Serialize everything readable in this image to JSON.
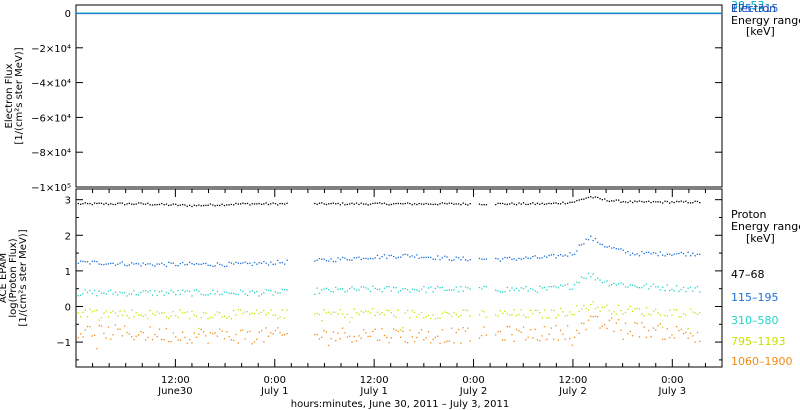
{
  "chart_data": [
    {
      "type": "line",
      "panel": "top",
      "ylabel_lines": [
        "Electron Flux",
        "[1/(cm²s ster MeV)]"
      ],
      "ytick_labels": [
        "0",
        "−2×10⁴",
        "−4×10⁴",
        "−6×10⁴",
        "−8×10⁴",
        "−1×10⁵"
      ],
      "yticks": [
        0,
        -20000,
        -40000,
        -60000,
        -80000,
        -100000
      ],
      "ylim": [
        -100000,
        0
      ],
      "grid": false,
      "legend": {
        "title_lines": [
          "Electron",
          "Energy range",
          "[keV]"
        ],
        "entries": [
          "38–53",
          "175–315"
        ]
      },
      "series": [
        {
          "name": "38–53",
          "color": "#00b4c8",
          "values": [
            0,
            0
          ]
        },
        {
          "name": "175–315",
          "color": "#1f77c8",
          "values": [
            0,
            0
          ]
        }
      ]
    },
    {
      "type": "scatter",
      "panel": "bottom",
      "ylabel_lines": [
        "ACE EPAM",
        "log(Proton Flux)",
        "[1/(cm²s ster MeV)]"
      ],
      "ytick_labels": [
        "3",
        "2",
        "1",
        "0",
        "−1"
      ],
      "yticks": [
        3,
        2,
        1,
        0,
        -1
      ],
      "ylim": [
        -1.7,
        3.3
      ],
      "xlim": [
        0,
        78
      ],
      "xlabel": "hours:minutes, June 30, 2011 – July  3, 2011",
      "xtick_labels": [
        {
          "time": "12:00",
          "date": "June30",
          "hours": 12
        },
        {
          "time": "0:00",
          "date": "July 1",
          "hours": 24
        },
        {
          "time": "12:00",
          "date": "July 1",
          "hours": 36
        },
        {
          "time": "0:00",
          "date": "July 2",
          "hours": 48
        },
        {
          "time": "12:00",
          "date": "July 2",
          "hours": 60
        },
        {
          "time": "0:00",
          "date": "July 3",
          "hours": 72
        }
      ],
      "grid": false,
      "legend": {
        "title_lines": [
          "Proton",
          "Energy range",
          "[keV]"
        ],
        "entries": [
          "47–68",
          "115–195",
          "310–580",
          "795–1193",
          "1060–1900"
        ]
      },
      "data_gaps_hours": [
        [
          25.5,
          28.5
        ],
        [
          47.8,
          48.5
        ],
        [
          49.5,
          50.5
        ]
      ],
      "series": [
        {
          "name": "47–68",
          "color": "#000000",
          "x": [
            2,
            8,
            14,
            20,
            24,
            29,
            35,
            40,
            46,
            52,
            57,
            60,
            62,
            64,
            67,
            71,
            75
          ],
          "y": [
            2.9,
            2.9,
            2.85,
            2.9,
            2.9,
            2.9,
            2.9,
            2.9,
            2.9,
            2.9,
            2.9,
            2.95,
            3.1,
            3.0,
            2.95,
            2.95,
            2.95
          ]
        },
        {
          "name": "115–195",
          "color": "#1a6fd6",
          "x": [
            2,
            8,
            14,
            20,
            24,
            29,
            35,
            40,
            46,
            52,
            57,
            60,
            61,
            62,
            64,
            67,
            71,
            75
          ],
          "y": [
            1.25,
            1.2,
            1.2,
            1.2,
            1.25,
            1.3,
            1.4,
            1.45,
            1.35,
            1.35,
            1.4,
            1.5,
            1.8,
            1.95,
            1.7,
            1.5,
            1.5,
            1.5
          ]
        },
        {
          "name": "310–580",
          "color": "#22d3c7",
          "x": [
            2,
            8,
            14,
            20,
            24,
            29,
            35,
            40,
            46,
            52,
            57,
            60,
            61,
            62,
            64,
            67,
            71,
            75
          ],
          "y": [
            0.4,
            0.4,
            0.4,
            0.4,
            0.4,
            0.45,
            0.5,
            0.5,
            0.5,
            0.5,
            0.5,
            0.6,
            0.85,
            0.9,
            0.7,
            0.6,
            0.55,
            0.5
          ]
        },
        {
          "name": "795–1193",
          "color": "#c8e000",
          "x": [
            2,
            8,
            14,
            20,
            24,
            29,
            35,
            40,
            46,
            52,
            57,
            60,
            62,
            64,
            67,
            71,
            75
          ],
          "y": [
            -0.15,
            -0.2,
            -0.2,
            -0.2,
            -0.2,
            -0.2,
            -0.15,
            -0.2,
            -0.2,
            -0.2,
            -0.2,
            -0.1,
            0.05,
            -0.05,
            -0.1,
            -0.15,
            -0.15
          ]
        },
        {
          "name": "1060–1900",
          "color": "#f08a14",
          "x": [
            2,
            8,
            14,
            20,
            24,
            29,
            35,
            40,
            46,
            52,
            57,
            60,
            62,
            64,
            67,
            71,
            75
          ],
          "y": [
            -0.7,
            -0.75,
            -0.8,
            -0.8,
            -0.8,
            -0.8,
            -0.75,
            -0.8,
            -0.8,
            -0.75,
            -0.75,
            -0.65,
            -0.45,
            -0.5,
            -0.6,
            -0.7,
            -0.75
          ]
        }
      ]
    }
  ]
}
